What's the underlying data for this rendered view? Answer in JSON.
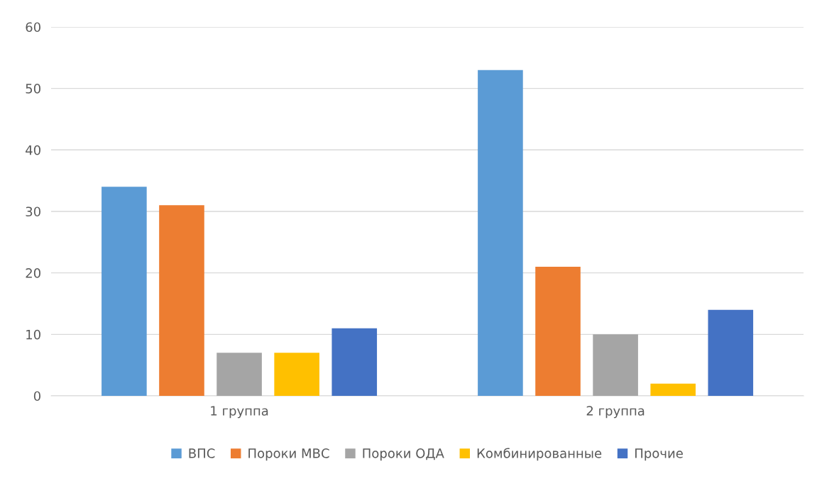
{
  "chart_data": {
    "type": "bar",
    "categories": [
      "1 группа",
      "2 группа"
    ],
    "series": [
      {
        "name": "ВПС",
        "color": "#5b9bd5",
        "values": [
          34,
          53
        ]
      },
      {
        "name": "Пороки МВС",
        "color": "#ed7d31",
        "values": [
          31,
          21
        ]
      },
      {
        "name": "Пороки ОДА",
        "color": "#a5a5a5",
        "values": [
          7,
          10
        ]
      },
      {
        "name": "Комбинированные",
        "color": "#ffc000",
        "values": [
          7,
          2
        ]
      },
      {
        "name": "Прочие",
        "color": "#4472c4",
        "values": [
          11,
          14
        ]
      }
    ],
    "ylim": [
      0,
      60
    ],
    "yticks": [
      0,
      10,
      20,
      30,
      40,
      50,
      60
    ],
    "grid": "y",
    "legend": "bottom"
  }
}
